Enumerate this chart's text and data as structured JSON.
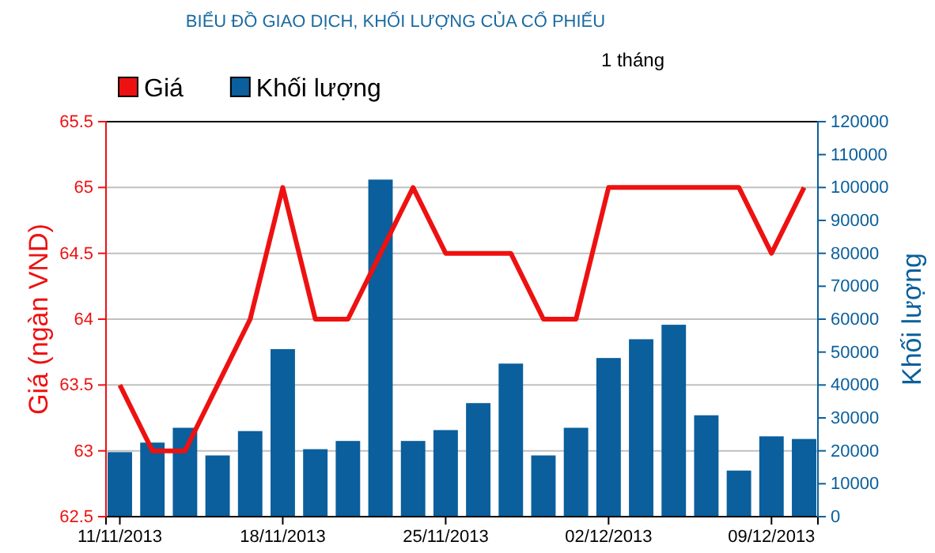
{
  "chart_data": {
    "type": "bar",
    "title": "BIỂU ĐỒ GIAO DỊCH, KHỐI LƯỢNG CỦA CỔ PHIẾU",
    "annotations": [
      "1 tháng"
    ],
    "ylabel": "Giá (ngàn VND)",
    "y2label": "Khối lượng",
    "categories": [
      "11/11/2013",
      null,
      null,
      null,
      null,
      "18/11/2013",
      null,
      null,
      null,
      null,
      "25/11/2013",
      null,
      null,
      null,
      null,
      "02/12/2013",
      null,
      null,
      null,
      null,
      "09/12/2013",
      null
    ],
    "series": [
      {
        "name": "Giá",
        "type": "line",
        "color": "#ee1111",
        "values": [
          63.5,
          63,
          63,
          63.5,
          64,
          65,
          64,
          64,
          64.5,
          65,
          64.5,
          64.5,
          64.5,
          64,
          64,
          65,
          65,
          65,
          65,
          65,
          64.5,
          65
        ]
      },
      {
        "name": "Khối lượng",
        "axis": "y2",
        "color": "#0a5f9c",
        "values": [
          19600,
          22500,
          27000,
          18600,
          26000,
          50900,
          20500,
          23000,
          102400,
          23000,
          26300,
          34500,
          46500,
          18600,
          27000,
          48200,
          53900,
          58300,
          30800,
          14000,
          24400,
          23600
        ]
      }
    ],
    "ylim": [
      62.5,
      65.5
    ],
    "yticks": [
      62.5,
      63,
      63.5,
      64,
      64.5,
      65,
      65.5
    ],
    "y2lim": [
      0,
      120000
    ],
    "y2ticks": [
      0,
      10000,
      20000,
      30000,
      40000,
      50000,
      60000,
      70000,
      80000,
      90000,
      100000,
      110000,
      120000
    ],
    "grid": "y",
    "legend": "top left"
  }
}
